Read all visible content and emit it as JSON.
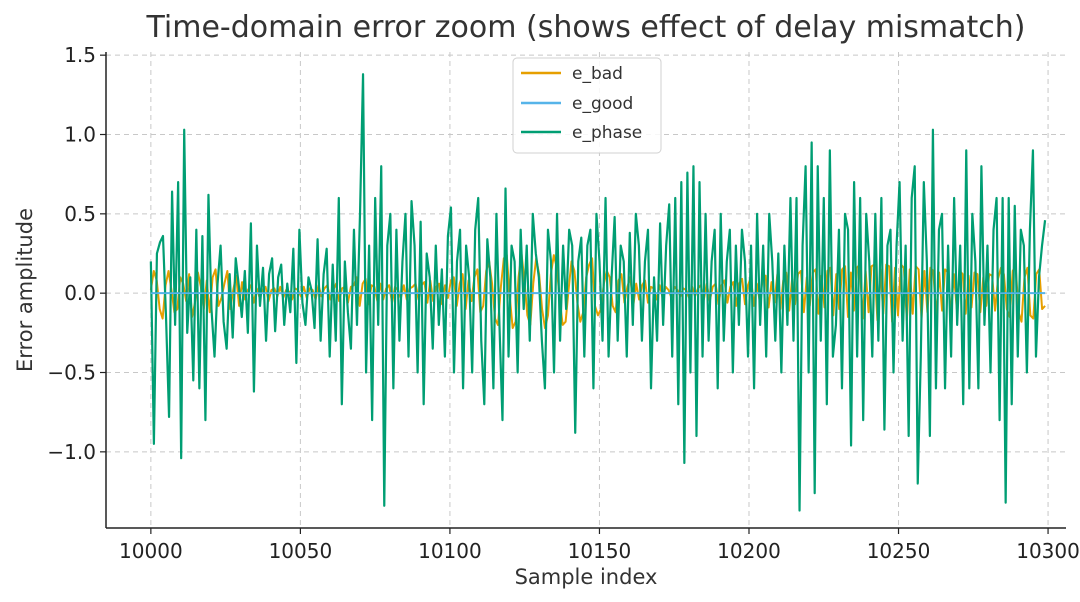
{
  "chart_data": {
    "type": "line",
    "title": "Time-domain error zoom (shows effect of delay mismatch)",
    "xlabel": "Sample index",
    "ylabel": "Error amplitude",
    "xlim": [
      9985,
      10306
    ],
    "ylim": [
      -1.48,
      1.52
    ],
    "xticks": [
      10000,
      10050,
      10100,
      10150,
      10200,
      10250,
      10300
    ],
    "yticks": [
      -1.0,
      -0.5,
      0.0,
      0.5,
      1.0,
      1.5
    ],
    "ytick_labels": [
      "−1.0",
      "−0.5",
      "0.0",
      "0.5",
      "1.0",
      "1.5"
    ],
    "grid": true,
    "legend_position": "top-center",
    "x_start": 10000,
    "x_end": 10299,
    "series": [
      {
        "name": "e_bad",
        "color": "#E69F00",
        "values": [
          0.02,
          0.14,
          0.08,
          -0.1,
          -0.16,
          0.05,
          0.14,
          0.02,
          -0.12,
          -0.1,
          0.1,
          0.06,
          -0.05,
          0.12,
          -0.15,
          -0.06,
          0.13,
          0.04,
          -0.1,
          0.08,
          -0.12,
          0.1,
          0.15,
          -0.08,
          -0.03,
          0.06,
          0.14,
          -0.1,
          0.02,
          0.11,
          -0.08,
          0.07,
          -0.04,
          0.02,
          0.05,
          -0.06,
          0.03,
          -0.03,
          0.02,
          0.04,
          -0.05,
          0.02,
          0.03,
          -0.02,
          0.04,
          -0.03,
          0.02,
          0.01,
          -0.04,
          0.03,
          0.02,
          -0.02,
          0.04,
          -0.03,
          0.03,
          0.02,
          -0.04,
          0.05,
          -0.02,
          0.03,
          0.05,
          -0.04,
          0.02,
          0.06,
          -0.05,
          0.03,
          0.04,
          -0.06,
          0.04,
          0.05,
          0.1,
          -0.08,
          0.06,
          0.09,
          -0.07,
          0.05,
          0.04,
          -0.05,
          0.06,
          -0.04,
          0.03,
          0.05,
          -0.06,
          0.04,
          0.02,
          -0.03,
          0.05,
          -0.04,
          0.03,
          0.04,
          0.06,
          -0.04,
          0.05,
          0.07,
          -0.06,
          0.08,
          -0.05,
          0.04,
          0.06,
          -0.07,
          0.05,
          -0.03,
          0.08,
          0.1,
          -0.08,
          0.06,
          0.12,
          -0.1,
          0.08,
          -0.05,
          0.1,
          0.15,
          -0.12,
          -0.08,
          0.14,
          0.2,
          0.06,
          -0.16,
          -0.2,
          0.04,
          0.22,
          0.24,
          -0.02,
          -0.22,
          -0.18,
          0.1,
          0.25,
          0.08,
          -0.14,
          -0.2,
          0.06,
          0.22,
          0.12,
          -0.1,
          -0.22,
          -0.14,
          0.12,
          0.24,
          0.16,
          -0.04,
          -0.2,
          -0.18,
          0.02,
          0.2,
          0.14,
          -0.06,
          -0.18,
          -0.12,
          0.1,
          0.18,
          0.22,
          -0.08,
          -0.14,
          -0.1,
          0.06,
          0.14,
          0.1,
          -0.08,
          -0.12,
          0.08,
          0.12,
          -0.06,
          0.04,
          0.1,
          -0.08,
          0.06,
          -0.04,
          0.05,
          0.08,
          -0.06,
          0.04,
          0.03,
          -0.04,
          0.05,
          -0.03,
          0.04,
          0.02,
          -0.03,
          0.04,
          0.02,
          -0.02,
          0.03,
          0.02,
          -0.03,
          0.04,
          -0.02,
          0.03,
          0.05,
          -0.04,
          0.06,
          -0.05,
          0.04,
          0.06,
          -0.07,
          0.05,
          0.08,
          -0.06,
          0.04,
          0.07,
          -0.08,
          0.06,
          0.09,
          -0.07,
          0.05,
          0.1,
          -0.08,
          0.06,
          -0.05,
          0.09,
          0.11,
          -0.09,
          0.07,
          -0.06,
          0.12,
          -0.1,
          0.08,
          0.13,
          -0.11,
          0.09,
          -0.07,
          0.12,
          0.14,
          -0.12,
          0.1,
          -0.08,
          0.13,
          0.15,
          -0.13,
          0.11,
          -0.09,
          0.14,
          0.16,
          -0.14,
          0.12,
          -0.1,
          0.15,
          0.17,
          -0.15,
          0.13,
          -0.11,
          0.16,
          0.18,
          -0.16,
          0.14,
          -0.12,
          0.17,
          0.18,
          -0.17,
          0.15,
          -0.13,
          0.18,
          0.17,
          -0.18,
          0.16,
          -0.14,
          0.18,
          0.16,
          -0.17,
          0.15,
          -0.13,
          0.17,
          0.15,
          -0.16,
          0.14,
          -0.12,
          0.16,
          0.14,
          -0.15,
          0.13,
          -0.11,
          0.15,
          0.13,
          -0.14,
          0.12,
          -0.1,
          0.14,
          0.12,
          -0.13,
          0.11,
          -0.09,
          0.13,
          0.12,
          -0.12,
          0.1,
          -0.08,
          0.12,
          0.11,
          -0.11,
          0.09,
          0.16,
          0.12,
          -0.1,
          -0.15,
          0.14,
          0.17,
          -0.12,
          -0.18,
          0.1,
          0.16,
          -0.14,
          -0.16,
          0.12,
          0.15,
          -0.1,
          -0.08
        ]
      },
      {
        "name": "e_good",
        "color": "#56B4E9",
        "values": [
          0.0,
          0.0
        ]
      },
      {
        "name": "e_phase",
        "color": "#009E73",
        "values": [
          0.2,
          -0.95,
          0.25,
          0.32,
          0.36,
          -0.15,
          -0.78,
          0.64,
          -0.2,
          0.7,
          -1.04,
          1.03,
          -0.25,
          0.1,
          -0.55,
          0.4,
          -0.6,
          0.36,
          -0.8,
          0.62,
          -0.1,
          -0.4,
          0.06,
          0.3,
          -0.18,
          -0.35,
          0.12,
          -0.28,
          0.22,
          0.05,
          -0.15,
          0.14,
          -0.25,
          0.44,
          -0.62,
          0.3,
          -0.08,
          0.16,
          -0.3,
          0.12,
          0.22,
          -0.24,
          0.1,
          0.18,
          -0.2,
          0.06,
          -0.12,
          0.28,
          -0.44,
          0.4,
          -0.06,
          -0.2,
          0.1,
          0.02,
          -0.22,
          0.34,
          -0.3,
          0.12,
          0.28,
          -0.4,
          0.18,
          -0.3,
          0.6,
          -0.7,
          0.2,
          -0.12,
          -0.35,
          0.4,
          -0.2,
          0.5,
          1.38,
          -0.5,
          0.3,
          -0.8,
          0.6,
          -0.2,
          0.8,
          -1.34,
          0.3,
          0.5,
          -0.6,
          0.4,
          -0.3,
          0.2,
          0.5,
          -0.4,
          0.58,
          0.3,
          -0.5,
          0.45,
          -0.7,
          0.25,
          0.1,
          -0.35,
          0.3,
          -0.2,
          0.15,
          -0.4,
          0.36,
          0.54,
          -0.5,
          0.2,
          0.4,
          -0.6,
          0.3,
          0.1,
          -0.5,
          0.4,
          0.6,
          -0.3,
          -0.7,
          0.34,
          0.1,
          -0.6,
          0.5,
          -0.2,
          -0.8,
          0.66,
          -0.4,
          0.3,
          0.2,
          -0.5,
          0.4,
          -0.1,
          0.3,
          -0.3,
          0.5,
          0.25,
          0.1,
          -0.3,
          -0.6,
          0.4,
          0.2,
          -0.5,
          0.5,
          -0.3,
          0.3,
          -0.1,
          0.4,
          0.3,
          -0.88,
          0.2,
          0.35,
          -0.4,
          0.3,
          0.4,
          -0.6,
          0.5,
          0.2,
          -0.3,
          0.6,
          -0.4,
          0.1,
          0.48,
          -0.3,
          0.3,
          0.2,
          -0.4,
          0.38,
          -0.2,
          0.5,
          0.3,
          -0.3,
          0.2,
          0.4,
          -0.6,
          0.1,
          -0.3,
          0.44,
          -0.2,
          0.3,
          0.56,
          -0.4,
          0.6,
          -0.7,
          0.7,
          -1.07,
          0.76,
          -0.5,
          0.8,
          -0.9,
          0.7,
          -0.4,
          0.5,
          -0.3,
          0.2,
          0.4,
          -0.6,
          0.5,
          -0.3,
          0.2,
          0.4,
          -0.5,
          0.3,
          -0.2,
          0.4,
          0.2,
          -0.4,
          0.3,
          -0.6,
          0.5,
          -0.2,
          0.3,
          -0.4,
          0.5,
          0.2,
          -0.3,
          0.25,
          -0.5,
          0.3,
          -0.2,
          0.6,
          -0.3,
          0.6,
          -1.37,
          0.3,
          0.8,
          -0.5,
          0.95,
          -1.26,
          0.8,
          -0.3,
          0.6,
          -0.7,
          0.9,
          -0.4,
          -0.2,
          0.4,
          -0.6,
          0.5,
          0.4,
          -0.96,
          0.7,
          -0.4,
          0.6,
          -0.8,
          0.5,
          0.2,
          -0.4,
          0.5,
          -0.3,
          0.6,
          -0.86,
          0.3,
          0.4,
          -0.5,
          0.3,
          0.7,
          -0.3,
          0.3,
          -0.9,
          0.6,
          0.8,
          -1.2,
          -0.4,
          0.7,
          0.2,
          -0.9,
          1.03,
          -0.6,
          0.4,
          0.5,
          -0.6,
          0.3,
          -0.4,
          0.6,
          -0.2,
          0.3,
          -0.7,
          0.9,
          -0.6,
          0.5,
          0.2,
          -0.6,
          0.8,
          -0.2,
          0.3,
          -0.5,
          0.4,
          0.6,
          -0.8,
          0.6,
          -1.32,
          0.6,
          -0.7,
          0.55,
          -0.4,
          0.4,
          0.3,
          -0.5,
          0.4,
          0.9,
          -0.4,
          0.1,
          0.3,
          0.46
        ]
      }
    ]
  }
}
